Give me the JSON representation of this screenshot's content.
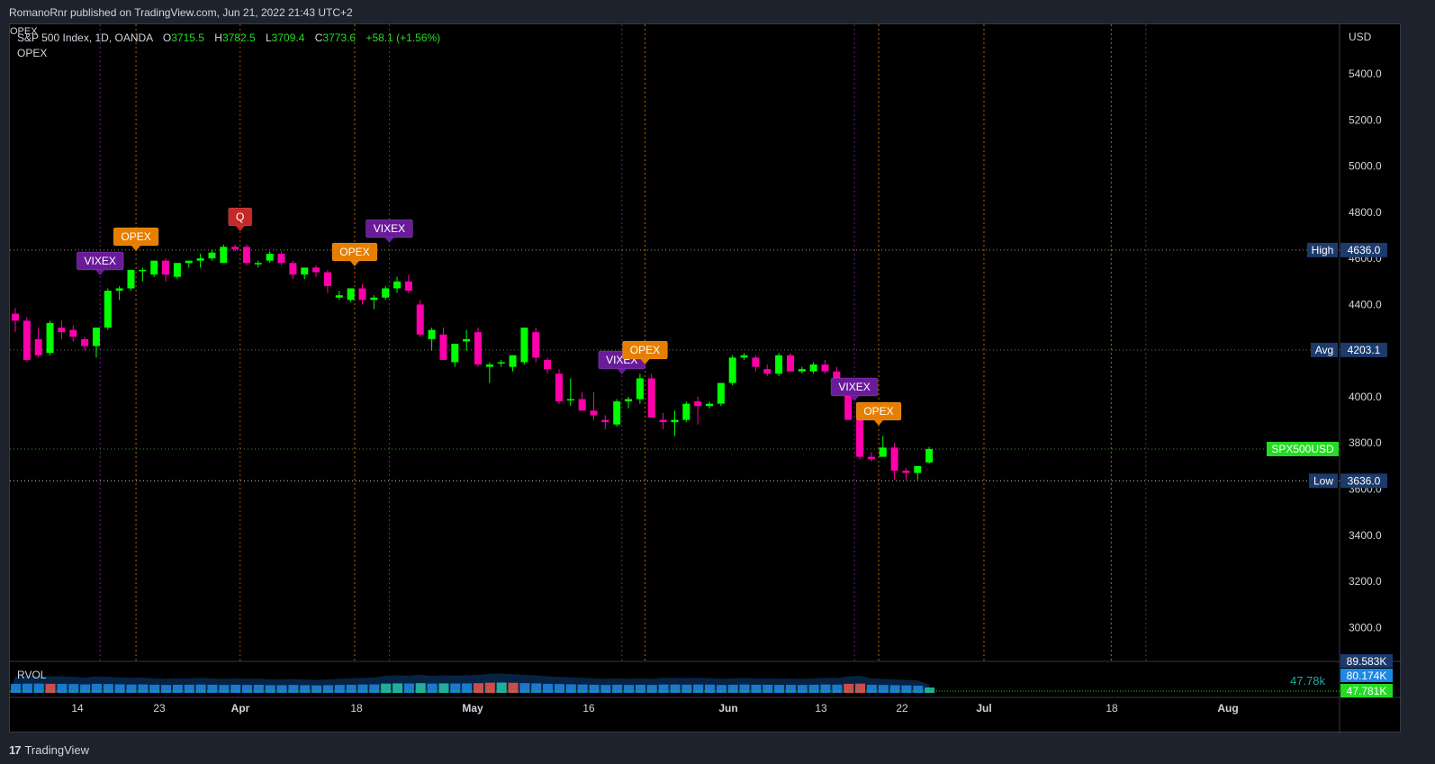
{
  "header": {
    "published": "RomanoRnr published on TradingView.com, Jun 21, 2022 21:43 UTC+2"
  },
  "legend": {
    "symbol": "S&P 500 Index, 1D, OANDA",
    "o_label": "O",
    "o": "3715.5",
    "h_label": "H",
    "h": "3782.5",
    "l_label": "L",
    "l": "3709.4",
    "c_label": "C",
    "c": "3773.6",
    "change": "+58.1 (+1.56%)",
    "indicator": "OPEX",
    "overlap_text": "OPEX"
  },
  "price_axis": {
    "currency": "USD",
    "ticks": [
      "5400.0",
      "5200.0",
      "5000.0",
      "4800.0",
      "4600.0",
      "4400.0",
      "4200.0",
      "4000.0",
      "3800.0",
      "3600.0",
      "3400.0",
      "3200.0",
      "3000.0"
    ]
  },
  "levels": {
    "high": {
      "label": "High",
      "value": "4636.0"
    },
    "avg": {
      "label": "Avg",
      "value": "4203.1"
    },
    "last": {
      "label": "SPX500USD",
      "value": "3773.6"
    },
    "low": {
      "label": "Low",
      "value": "3636.0"
    }
  },
  "events": [
    {
      "text": "VIXEX",
      "type": "vixex"
    },
    {
      "text": "OPEX",
      "type": "opex"
    },
    {
      "text": "Q",
      "type": "q"
    },
    {
      "text": "OPEX",
      "type": "opex"
    },
    {
      "text": "VIXEX",
      "type": "vixex"
    },
    {
      "text": "VIXEX",
      "type": "vixex"
    },
    {
      "text": "OPEX",
      "type": "opex"
    },
    {
      "text": "VIXEX",
      "type": "vixex"
    },
    {
      "text": "OPEX",
      "type": "opex"
    }
  ],
  "volume_pane": {
    "label": "RVOL",
    "current": "47.78k",
    "axis_values": [
      "89.583K",
      "80.174K",
      "47.781K"
    ]
  },
  "time_axis": [
    "14",
    "23",
    "Apr",
    "18",
    "May",
    "16",
    "Jun",
    "13",
    "22",
    "Jul",
    "18",
    "Aug"
  ],
  "footer": {
    "brand": "TradingView",
    "logo": "17"
  },
  "colors": {
    "up": "#00ff00",
    "down": "#ff00aa",
    "vixex": "#6a1b9a",
    "opex": "#e67e00",
    "q": "#c62828",
    "axis_label_bg": "#1c3a6b",
    "last_bg": "#22dd22"
  },
  "chart_data": {
    "type": "candlestick",
    "series": [
      {
        "name": "",
        "ohlc": [
          [
            4360,
            4385,
            4280,
            4330
          ],
          [
            4330,
            4345,
            4150,
            4160
          ],
          [
            4250,
            4300,
            4170,
            4180
          ],
          [
            4190,
            4330,
            4180,
            4320
          ],
          [
            4300,
            4330,
            4250,
            4280
          ],
          [
            4290,
            4310,
            4240,
            4260
          ],
          [
            4250,
            4260,
            4200,
            4220
          ],
          [
            4220,
            4300,
            4170,
            4300
          ],
          [
            4300,
            4470,
            4290,
            4460
          ],
          [
            4460,
            4480,
            4420,
            4470
          ],
          [
            4470,
            4550,
            4460,
            4550
          ],
          [
            4550,
            4560,
            4500,
            4550
          ],
          [
            4530,
            4590,
            4520,
            4590
          ],
          [
            4590,
            4600,
            4500,
            4530
          ],
          [
            4520,
            4580,
            4510,
            4580
          ],
          [
            4580,
            4590,
            4560,
            4590
          ],
          [
            4590,
            4620,
            4560,
            4600
          ],
          [
            4600,
            4640,
            4590,
            4625
          ],
          [
            4580,
            4660,
            4580,
            4650
          ],
          [
            4650,
            4660,
            4630,
            4640
          ],
          [
            4650,
            4660,
            4570,
            4580
          ],
          [
            4580,
            4590,
            4560,
            4580
          ],
          [
            4590,
            4630,
            4580,
            4620
          ],
          [
            4620,
            4630,
            4570,
            4580
          ],
          [
            4580,
            4590,
            4510,
            4530
          ],
          [
            4530,
            4560,
            4510,
            4560
          ],
          [
            4560,
            4570,
            4520,
            4540
          ],
          [
            4540,
            4550,
            4450,
            4480
          ],
          [
            4430,
            4460,
            4420,
            4440
          ],
          [
            4420,
            4470,
            4410,
            4470
          ],
          [
            4470,
            4490,
            4400,
            4420
          ],
          [
            4420,
            4440,
            4380,
            4430
          ],
          [
            4430,
            4480,
            4420,
            4470
          ],
          [
            4470,
            4520,
            4450,
            4500
          ],
          [
            4500,
            4530,
            4450,
            4460
          ],
          [
            4400,
            4420,
            4260,
            4270
          ],
          [
            4250,
            4300,
            4200,
            4290
          ],
          [
            4270,
            4300,
            4160,
            4160
          ],
          [
            4150,
            4230,
            4130,
            4230
          ],
          [
            4240,
            4290,
            4200,
            4250
          ],
          [
            4280,
            4300,
            4130,
            4140
          ],
          [
            4130,
            4150,
            4060,
            4140
          ],
          [
            4150,
            4160,
            4130,
            4150
          ],
          [
            4130,
            4180,
            4110,
            4180
          ],
          [
            4150,
            4300,
            4140,
            4300
          ],
          [
            4280,
            4300,
            4150,
            4170
          ],
          [
            4160,
            4170,
            4100,
            4120
          ],
          [
            4100,
            4120,
            3970,
            3980
          ],
          [
            3990,
            4080,
            3960,
            3990
          ],
          [
            3990,
            4020,
            3940,
            3940
          ],
          [
            3940,
            4020,
            3900,
            3920
          ],
          [
            3900,
            3920,
            3860,
            3890
          ],
          [
            3880,
            3990,
            3870,
            3980
          ],
          [
            3980,
            4000,
            3950,
            3990
          ],
          [
            3990,
            4100,
            3970,
            4080
          ],
          [
            4080,
            4100,
            3910,
            3910
          ],
          [
            3900,
            3930,
            3860,
            3890
          ],
          [
            3890,
            3940,
            3830,
            3900
          ],
          [
            3900,
            3980,
            3890,
            3970
          ],
          [
            3980,
            4000,
            3880,
            3960
          ],
          [
            3960,
            3980,
            3950,
            3970
          ],
          [
            3970,
            4060,
            3960,
            4060
          ],
          [
            4060,
            4180,
            4050,
            4170
          ],
          [
            4170,
            4190,
            4160,
            4180
          ],
          [
            4170,
            4180,
            4110,
            4130
          ],
          [
            4120,
            4140,
            4090,
            4100
          ],
          [
            4100,
            4190,
            4090,
            4180
          ],
          [
            4180,
            4190,
            4110,
            4110
          ],
          [
            4110,
            4130,
            4100,
            4120
          ],
          [
            4110,
            4150,
            4100,
            4140
          ],
          [
            4140,
            4160,
            4100,
            4110
          ],
          [
            4110,
            4130,
            4020,
            4020
          ],
          [
            4020,
            4030,
            3900,
            3900
          ],
          [
            3900,
            3910,
            3730,
            3740
          ],
          [
            3740,
            3760,
            3720,
            3730
          ],
          [
            3740,
            3830,
            3740,
            3780
          ],
          [
            3780,
            3800,
            3640,
            3680
          ],
          [
            3680,
            3690,
            3640,
            3670
          ],
          [
            3670,
            3700,
            3640,
            3700
          ],
          [
            3715.5,
            3782.5,
            3709.4,
            3773.6
          ]
        ]
      }
    ],
    "price_range": [
      2900,
      5500
    ],
    "volume": [
      80,
      82,
      82,
      80,
      80,
      78,
      75,
      80,
      78,
      76,
      74,
      75,
      72,
      70,
      72,
      72,
      74,
      72,
      70,
      72,
      70,
      71,
      68,
      68,
      70,
      68,
      66,
      68,
      70,
      72,
      74,
      75,
      82,
      84,
      83,
      86,
      82,
      84,
      83,
      84,
      86,
      90,
      91,
      89,
      86,
      84,
      80,
      78,
      76,
      74,
      72,
      70,
      72,
      70,
      72,
      70,
      74,
      74,
      73,
      74,
      73,
      70,
      72,
      74,
      72,
      72,
      71,
      71,
      70,
      72,
      74,
      73,
      80,
      82,
      72,
      70,
      68,
      66,
      64,
      48
    ],
    "volume_colors": [
      "blue",
      "blue",
      "blue",
      "red",
      "blue",
      "blue",
      "blue",
      "blue",
      "blue",
      "blue",
      "blue",
      "blue",
      "blue",
      "blue",
      "blue",
      "blue",
      "blue",
      "blue",
      "blue",
      "blue",
      "blue",
      "blue",
      "blue",
      "blue",
      "blue",
      "blue",
      "blue",
      "blue",
      "blue",
      "blue",
      "blue",
      "blue",
      "teal",
      "teal",
      "blue",
      "teal",
      "blue",
      "teal",
      "blue",
      "blue",
      "red",
      "red",
      "teal",
      "red",
      "blue",
      "blue",
      "blue",
      "blue",
      "blue",
      "blue",
      "blue",
      "blue",
      "blue",
      "blue",
      "blue",
      "blue",
      "blue",
      "blue",
      "blue",
      "blue",
      "blue",
      "blue",
      "blue",
      "blue",
      "blue",
      "blue",
      "blue",
      "blue",
      "blue",
      "blue",
      "blue",
      "blue",
      "red",
      "red",
      "blue",
      "blue",
      "blue",
      "blue",
      "blue",
      "teal"
    ]
  }
}
